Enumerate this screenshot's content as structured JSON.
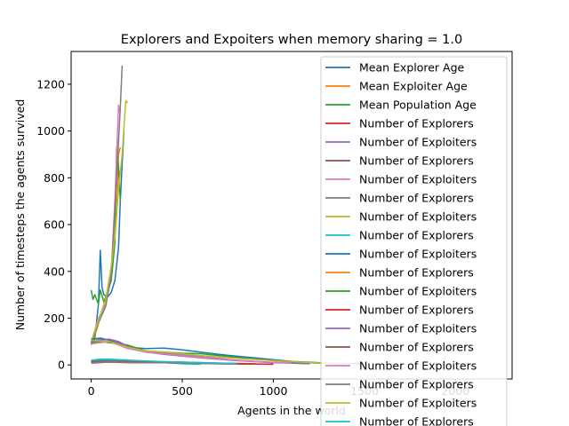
{
  "chart_data": {
    "type": "line",
    "title": "Explorers and Expoiters when memory sharing = 1.0",
    "xlabel": "Agents in the world",
    "ylabel": "Number of timesteps the agents survived",
    "xlim": [
      -110,
      2310
    ],
    "ylim": [
      -60,
      1340
    ],
    "x_ticks": [
      0,
      500,
      1000,
      1500,
      2000
    ],
    "y_ticks": [
      0,
      200,
      400,
      600,
      800,
      1000,
      1200
    ],
    "legend_position": "upper right",
    "grid": false,
    "series": [
      {
        "name": "Mean Explorer Age",
        "color": "#1f77b4",
        "points": [
          [
            0,
            90
          ],
          [
            20,
            110
          ],
          [
            40,
            260
          ],
          [
            50,
            490
          ],
          [
            60,
            330
          ],
          [
            70,
            300
          ],
          [
            90,
            290
          ],
          [
            110,
            310
          ],
          [
            130,
            360
          ],
          [
            150,
            500
          ],
          [
            160,
            700
          ],
          [
            170,
            860
          ],
          [
            180,
            1000
          ]
        ]
      },
      {
        "name": "Mean Exploiter Age",
        "color": "#ff7f0e",
        "points": [
          [
            0,
            85
          ],
          [
            30,
            150
          ],
          [
            60,
            230
          ],
          [
            90,
            320
          ],
          [
            110,
            400
          ],
          [
            130,
            550
          ],
          [
            140,
            640
          ],
          [
            150,
            900
          ],
          [
            160,
            930
          ]
        ]
      },
      {
        "name": "Mean Population Age",
        "color": "#2ca02c",
        "points": [
          [
            0,
            320
          ],
          [
            10,
            280
          ],
          [
            20,
            300
          ],
          [
            40,
            260
          ],
          [
            50,
            320
          ],
          [
            70,
            270
          ],
          [
            90,
            310
          ],
          [
            110,
            360
          ],
          [
            130,
            520
          ],
          [
            140,
            930
          ],
          [
            150,
            850
          ],
          [
            160,
            700
          ]
        ]
      },
      {
        "name": "Number of Explorers",
        "color": "#d62728",
        "points": [
          [
            0,
            10
          ],
          [
            50,
            15
          ],
          [
            100,
            18
          ],
          [
            200,
            12
          ],
          [
            300,
            14
          ],
          [
            400,
            10
          ],
          [
            500,
            8
          ],
          [
            600,
            6
          ],
          [
            800,
            4
          ],
          [
            1000,
            3
          ]
        ]
      },
      {
        "name": "Number of Exploiters",
        "color": "#9467bd",
        "points": [
          [
            0,
            100
          ],
          [
            50,
            110
          ],
          [
            100,
            110
          ],
          [
            150,
            100
          ],
          [
            200,
            80
          ],
          [
            300,
            60
          ],
          [
            400,
            50
          ],
          [
            500,
            45
          ],
          [
            600,
            35
          ],
          [
            800,
            20
          ],
          [
            1000,
            10
          ],
          [
            1200,
            5
          ]
        ]
      },
      {
        "name": "Number of Explorers",
        "color": "#8c564b",
        "points": [
          [
            0,
            15
          ],
          [
            100,
            20
          ],
          [
            200,
            18
          ],
          [
            300,
            15
          ],
          [
            500,
            12
          ],
          [
            700,
            8
          ],
          [
            900,
            5
          ]
        ]
      },
      {
        "name": "Number of Exploiters",
        "color": "#e377c2",
        "points": [
          [
            0,
            95
          ],
          [
            40,
            200
          ],
          [
            80,
            260
          ],
          [
            110,
            400
          ],
          [
            130,
            700
          ],
          [
            150,
            1110
          ],
          [
            155,
            1080
          ]
        ]
      },
      {
        "name": "Number of Explorers",
        "color": "#7f7f7f",
        "points": [
          [
            0,
            90
          ],
          [
            40,
            180
          ],
          [
            80,
            250
          ],
          [
            110,
            380
          ],
          [
            140,
            800
          ],
          [
            160,
            1100
          ],
          [
            170,
            1280
          ]
        ]
      },
      {
        "name": "Number of Exploiters",
        "color": "#bcbd22",
        "points": [
          [
            0,
            100
          ],
          [
            40,
            190
          ],
          [
            80,
            280
          ],
          [
            110,
            420
          ],
          [
            130,
            550
          ],
          [
            150,
            750
          ],
          [
            170,
            900
          ],
          [
            190,
            1130
          ],
          [
            200,
            1120
          ]
        ]
      },
      {
        "name": "Number of Explorers",
        "color": "#17becf",
        "points": [
          [
            0,
            20
          ],
          [
            50,
            25
          ],
          [
            100,
            25
          ],
          [
            200,
            20
          ],
          [
            300,
            15
          ],
          [
            400,
            10
          ],
          [
            500,
            5
          ],
          [
            600,
            3
          ]
        ]
      },
      {
        "name": "Number of Exploiters",
        "color": "#1f77b4",
        "points": [
          [
            0,
            110
          ],
          [
            50,
            115
          ],
          [
            100,
            105
          ],
          [
            200,
            75
          ],
          [
            300,
            70
          ],
          [
            400,
            72
          ],
          [
            500,
            65
          ],
          [
            600,
            55
          ],
          [
            700,
            45
          ],
          [
            900,
            30
          ],
          [
            1100,
            15
          ],
          [
            1300,
            8
          ],
          [
            1500,
            5
          ]
        ]
      },
      {
        "name": "Number of Explorers",
        "color": "#ff7f0e",
        "points": [
          [
            0,
            12
          ],
          [
            100,
            15
          ],
          [
            200,
            14
          ],
          [
            300,
            12
          ],
          [
            500,
            10
          ],
          [
            700,
            6
          ],
          [
            900,
            4
          ]
        ]
      },
      {
        "name": "Number of Exploiters",
        "color": "#2ca02c",
        "points": [
          [
            0,
            95
          ],
          [
            50,
            100
          ],
          [
            100,
            95
          ],
          [
            200,
            85
          ],
          [
            300,
            60
          ],
          [
            400,
            55
          ],
          [
            500,
            50
          ],
          [
            600,
            48
          ],
          [
            700,
            40
          ],
          [
            900,
            25
          ],
          [
            1100,
            12
          ],
          [
            1300,
            6
          ]
        ]
      },
      {
        "name": "Number of Explorers",
        "color": "#d62728",
        "points": [
          [
            0,
            8
          ],
          [
            100,
            12
          ],
          [
            200,
            10
          ],
          [
            400,
            9
          ],
          [
            600,
            7
          ],
          [
            800,
            5
          ],
          [
            1000,
            3
          ]
        ]
      },
      {
        "name": "Number of Exploiters",
        "color": "#9467bd",
        "points": [
          [
            0,
            100
          ],
          [
            50,
            105
          ],
          [
            100,
            110
          ],
          [
            150,
            95
          ],
          [
            200,
            80
          ],
          [
            300,
            55
          ],
          [
            400,
            45
          ],
          [
            600,
            30
          ],
          [
            800,
            18
          ],
          [
            1000,
            10
          ]
        ]
      },
      {
        "name": "Number of Explorers",
        "color": "#8c564b",
        "points": [
          [
            0,
            15
          ],
          [
            100,
            18
          ],
          [
            200,
            16
          ],
          [
            400,
            12
          ],
          [
            600,
            8
          ],
          [
            800,
            5
          ]
        ]
      },
      {
        "name": "Number of Exploiters",
        "color": "#e377c2",
        "points": [
          [
            0,
            90
          ],
          [
            100,
            100
          ],
          [
            200,
            70
          ],
          [
            300,
            55
          ],
          [
            500,
            40
          ],
          [
            700,
            25
          ],
          [
            900,
            15
          ],
          [
            1100,
            8
          ]
        ]
      },
      {
        "name": "Number of Explorers",
        "color": "#7f7f7f",
        "points": [
          [
            0,
            10
          ],
          [
            100,
            12
          ],
          [
            200,
            11
          ],
          [
            400,
            9
          ],
          [
            600,
            6
          ],
          [
            800,
            4
          ]
        ]
      },
      {
        "name": "Number of Exploiters",
        "color": "#bcbd22",
        "points": [
          [
            0,
            105
          ],
          [
            100,
            100
          ],
          [
            200,
            75
          ],
          [
            300,
            60
          ],
          [
            400,
            55
          ],
          [
            600,
            40
          ],
          [
            800,
            28
          ],
          [
            1000,
            18
          ],
          [
            1200,
            10
          ],
          [
            1400,
            6
          ]
        ]
      },
      {
        "name": "Number of Explorers",
        "color": "#17becf",
        "points": [
          [
            0,
            20
          ],
          [
            100,
            22
          ],
          [
            200,
            20
          ],
          [
            400,
            14
          ],
          [
            600,
            10
          ],
          [
            800,
            6
          ]
        ]
      }
    ]
  }
}
